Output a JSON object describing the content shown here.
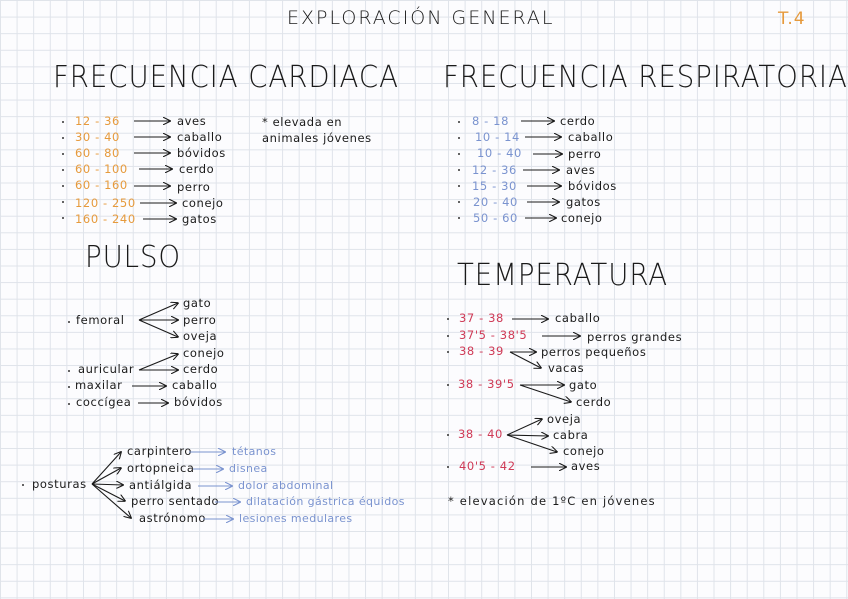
{
  "title": "EXPLORACIÓN GENERAL",
  "page_tag": "T.4",
  "cardiaca": {
    "heading": "FRECUENCIA CARDIACA",
    "note": "* elevada en animales jóvenes",
    "rows": [
      {
        "range": "12 - 36",
        "animal": "aves"
      },
      {
        "range": "30 - 40",
        "animal": "caballo"
      },
      {
        "range": "60 - 80",
        "animal": "bóvidos"
      },
      {
        "range": "60 - 100",
        "animal": "cerdo"
      },
      {
        "range": "60 - 160",
        "animal": "perro"
      },
      {
        "range": "120 - 250",
        "animal": "conejo"
      },
      {
        "range": "160 - 240",
        "animal": "gatos"
      }
    ]
  },
  "respiratoria": {
    "heading": "FRECUENCIA RESPIRATORIA",
    "rows": [
      {
        "range": "8 - 18",
        "animal": "cerdo"
      },
      {
        "range": "10 - 14",
        "animal": "caballo"
      },
      {
        "range": "10 - 40",
        "animal": "perro"
      },
      {
        "range": "12 - 36",
        "animal": "aves"
      },
      {
        "range": "15 - 30",
        "animal": "bóvidos"
      },
      {
        "range": "20 - 40",
        "animal": "gatos"
      },
      {
        "range": "50 - 60",
        "animal": "conejo"
      }
    ]
  },
  "pulso": {
    "heading": "PULSO",
    "femoral": {
      "label": "femoral",
      "targets": [
        "gato",
        "perro",
        "oveja"
      ]
    },
    "auricular": {
      "label": "auricular",
      "targets": [
        "conejo",
        "cerdo"
      ]
    },
    "maxilar": {
      "label": "maxilar",
      "target": "caballo"
    },
    "coccigea": {
      "label": "coccígea",
      "target": "bóvidos"
    }
  },
  "posturas": {
    "label": "posturas",
    "items": [
      {
        "name": "carpintero",
        "meaning": "tétanos"
      },
      {
        "name": "ortopneica",
        "meaning": "disnea"
      },
      {
        "name": "antiálgida",
        "meaning": "dolor abdominal"
      },
      {
        "name": "perro sentado",
        "meaning": "dilatación gástrica équidos"
      },
      {
        "name": "astrónomo",
        "meaning": "lesiones medulares"
      }
    ]
  },
  "temperatura": {
    "heading": "TEMPERATURA",
    "rows": [
      {
        "range": "37 - 38",
        "animals": [
          "caballo"
        ]
      },
      {
        "range": "37'5 - 38'5",
        "animals": [
          "perros grandes"
        ]
      },
      {
        "range": "38 - 39",
        "animals": [
          "perros pequeños",
          "vacas"
        ]
      },
      {
        "range": "38 - 39'5",
        "animals": [
          "gato",
          "cerdo"
        ]
      },
      {
        "range": "38 - 40",
        "animals": [
          "oveja",
          "cabra",
          "conejo"
        ]
      },
      {
        "range": "40'5 - 42",
        "animals": [
          "aves"
        ]
      }
    ],
    "note": "* elevación de 1ºC en jóvenes"
  }
}
